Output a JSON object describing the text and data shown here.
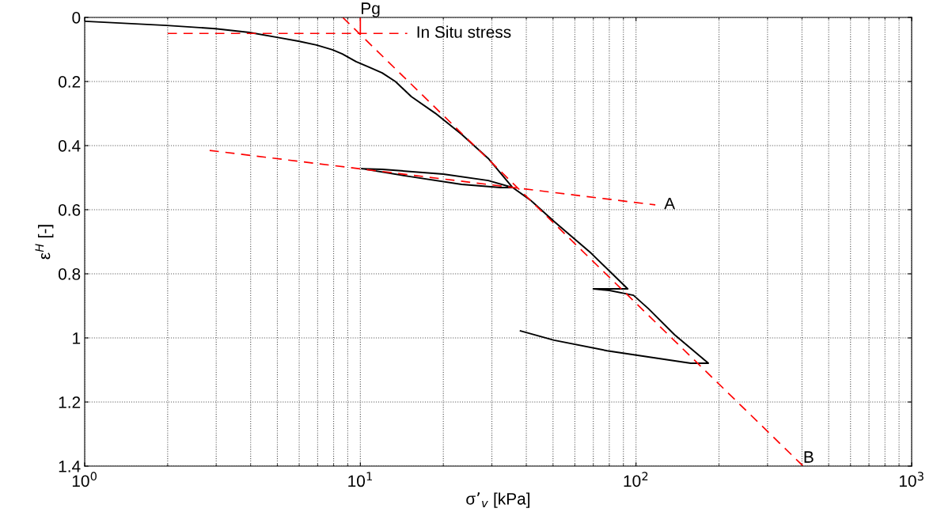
{
  "chart_data": {
    "type": "line",
    "xlabel": "σ’$_{v}$ [kPa]",
    "ylabel": "ε$^{H}$ [-]",
    "log": "x",
    "grid": true,
    "marker": "none",
    "xlim": [
      1,
      1000
    ],
    "xticks": [
      {
        "value": 1,
        "label": "10$^{0}$"
      },
      {
        "value": 10,
        "label": "10$^{1}$"
      },
      {
        "value": 100,
        "label": "10$^{2}$"
      },
      {
        "value": 1000,
        "label": "10$^{3}$"
      }
    ],
    "ylim": [
      1.4,
      0
    ],
    "yticks": [
      0,
      0.2,
      0.4,
      0.6,
      0.8,
      1,
      1.2,
      1.4
    ],
    "series": [
      {
        "color": "#000000",
        "line_style": "solid",
        "x": [
          1,
          1.98,
          2.98,
          3.96,
          4.98,
          5.96,
          6.93,
          7.92,
          8.6,
          9.65,
          10.8,
          12,
          13.4,
          15.3,
          18.7,
          23.3,
          29.1,
          35.7,
          32.3,
          23.3,
          15,
          10.1,
          12,
          20,
          29.1,
          35.7,
          41.4,
          50.5,
          68.8,
          93.3,
          70,
          80.1,
          97.9,
          111,
          138,
          183,
          158,
          121,
          78.6,
          50.4,
          38.1
        ],
        "values": [
          0.012,
          0.025,
          0.035,
          0.047,
          0.062,
          0.074,
          0.086,
          0.101,
          0.114,
          0.138,
          0.156,
          0.173,
          0.2,
          0.247,
          0.299,
          0.365,
          0.44,
          0.531,
          0.531,
          0.521,
          0.496,
          0.472,
          0.474,
          0.489,
          0.509,
          0.531,
          0.57,
          0.637,
          0.736,
          0.847,
          0.847,
          0.852,
          0.867,
          0.909,
          0.99,
          1.079,
          1.079,
          1.064,
          1.04,
          1.007,
          0.978
        ]
      },
      {
        "name": "In Situ stress",
        "color": "#ff0000",
        "line_style": "dashed",
        "x": [
          2,
          14.8
        ],
        "values": [
          0.05,
          0.05
        ]
      },
      {
        "name": "Pg",
        "color": "#ff0000",
        "line_style": "solid",
        "x": [
          10,
          10
        ],
        "values": [
          0.05,
          0
        ]
      },
      {
        "name": "B",
        "color": "#ff0000",
        "line_style": "dashed",
        "x": [
          8.63,
          404
        ],
        "values": [
          0,
          1.4
        ]
      },
      {
        "name": "A",
        "color": "#ff0000",
        "line_style": "dashed",
        "x": [
          2.84,
          117.5
        ],
        "values": [
          0.415,
          0.585
        ]
      }
    ]
  }
}
